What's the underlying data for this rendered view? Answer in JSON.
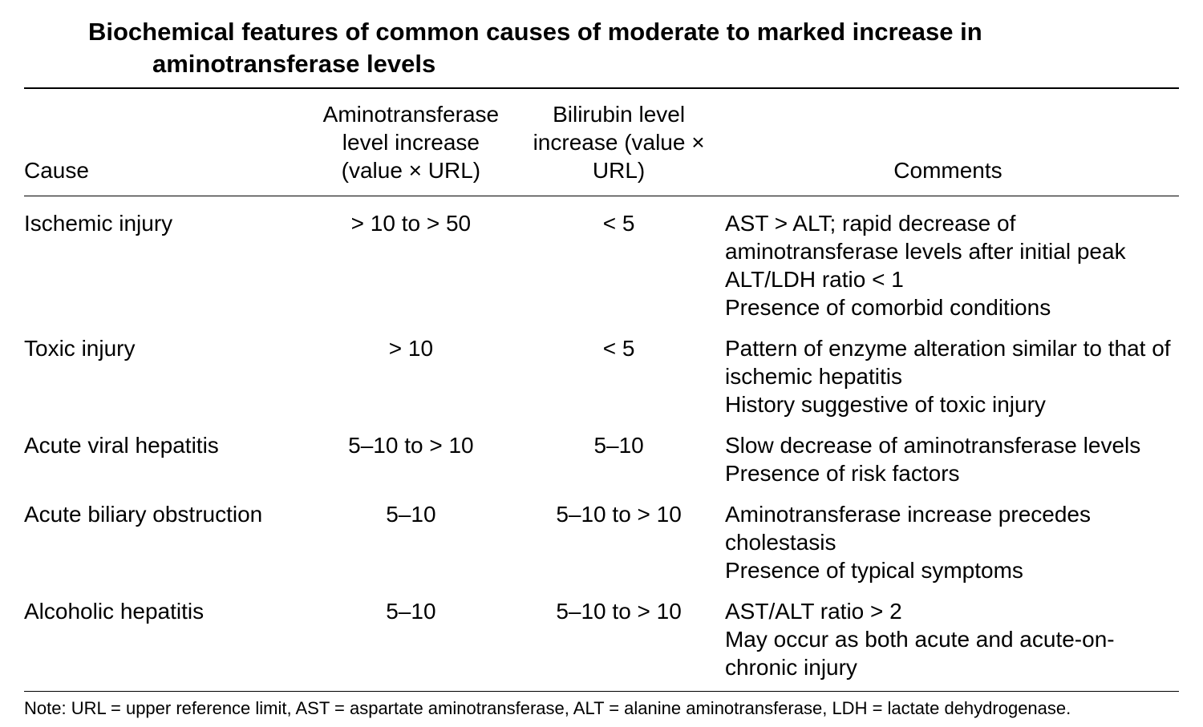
{
  "title": "Biochemical features of common causes of moderate to marked increase in aminotransferase levels",
  "headers": {
    "cause": "Cause",
    "amino": "Aminotransferase level increase (value × URL)",
    "bili": "Bilirubin level increase (value × URL)",
    "comments": "Comments"
  },
  "rows": [
    {
      "cause": "Ischemic injury",
      "amino": "> 10 to > 50",
      "bili": "< 5",
      "comments": [
        "AST > ALT; rapid decrease of aminotransferase levels after initial peak",
        "ALT/LDH ratio < 1",
        "Presence of comorbid conditions"
      ]
    },
    {
      "cause": "Toxic injury",
      "amino": "> 10",
      "bili": "< 5",
      "comments": [
        "Pattern of enzyme alteration similar to that of ischemic hepatitis",
        "History suggestive of toxic injury"
      ]
    },
    {
      "cause": "Acute viral hepatitis",
      "amino": "5–10 to > 10",
      "bili": "5–10",
      "comments": [
        "Slow decrease of aminotransferase levels",
        "Presence of risk factors"
      ]
    },
    {
      "cause": "Acute biliary obstruction",
      "amino": "5–10",
      "bili": "5–10 to > 10",
      "comments": [
        "Aminotransferase increase precedes cholestasis",
        "Presence of typical symptoms"
      ]
    },
    {
      "cause": "Alcoholic hepatitis",
      "amino": "5–10",
      "bili": "5–10 to > 10",
      "comments": [
        "AST/ALT ratio > 2",
        "May occur as both acute and acute-on-chronic injury"
      ]
    }
  ],
  "note": "Note: URL = upper reference limit, AST = aspartate aminotransferase, ALT = alanine aminotransferase, LDH = lactate dehydrogenase."
}
